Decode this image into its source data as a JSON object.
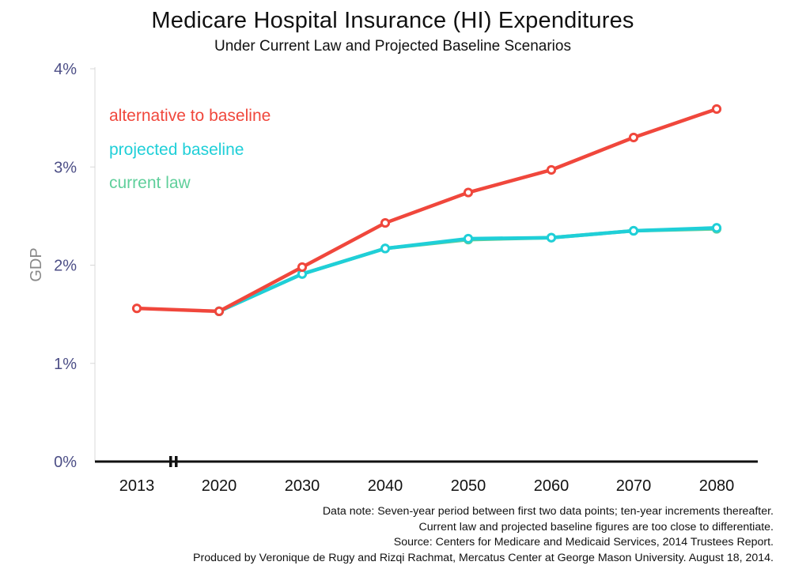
{
  "header": {
    "title": "Medicare Hospital Insurance (HI) Expenditures",
    "subtitle": "Under Current Law and Projected Baseline Scenarios"
  },
  "notes": [
    "Data note: Seven-year period between first two data points; ten-year increments thereafter.",
    "Current law and projected baseline figures are too close to differentiate.",
    "Source: Centers for Medicare and Medicaid Services, 2014 Trustees Report.",
    "Produced by Veronique de Rugy and Rizqi Rachmat, Mercatus Center at George Mason University. August 18, 2014."
  ],
  "chart_data": {
    "type": "line",
    "title": "Medicare Hospital Insurance (HI) Expenditures",
    "subtitle": "Under Current Law and Projected Baseline Scenarios",
    "ylabel": "GDP",
    "xlabel": "",
    "categories": [
      "2013",
      "2020",
      "2030",
      "2040",
      "2050",
      "2060",
      "2070",
      "2080"
    ],
    "yticks": [
      "0%",
      "1%",
      "2%",
      "3%",
      "4%"
    ],
    "ylim": [
      0,
      4
    ],
    "grid": false,
    "axis_break_after": "2013",
    "series": [
      {
        "name": "alternative to baseline",
        "color": "#f0473c",
        "values": [
          1.56,
          1.53,
          1.98,
          2.43,
          2.74,
          2.97,
          3.3,
          3.59
        ]
      },
      {
        "name": "projected baseline",
        "color": "#1fcfd8",
        "values": [
          null,
          1.53,
          1.91,
          2.17,
          2.27,
          2.28,
          2.35,
          2.38
        ]
      },
      {
        "name": "current law",
        "color": "#5fcf9b",
        "values": [
          null,
          1.53,
          1.91,
          2.17,
          2.26,
          2.28,
          2.35,
          2.37
        ]
      }
    ],
    "legend_placement": "top-left"
  }
}
